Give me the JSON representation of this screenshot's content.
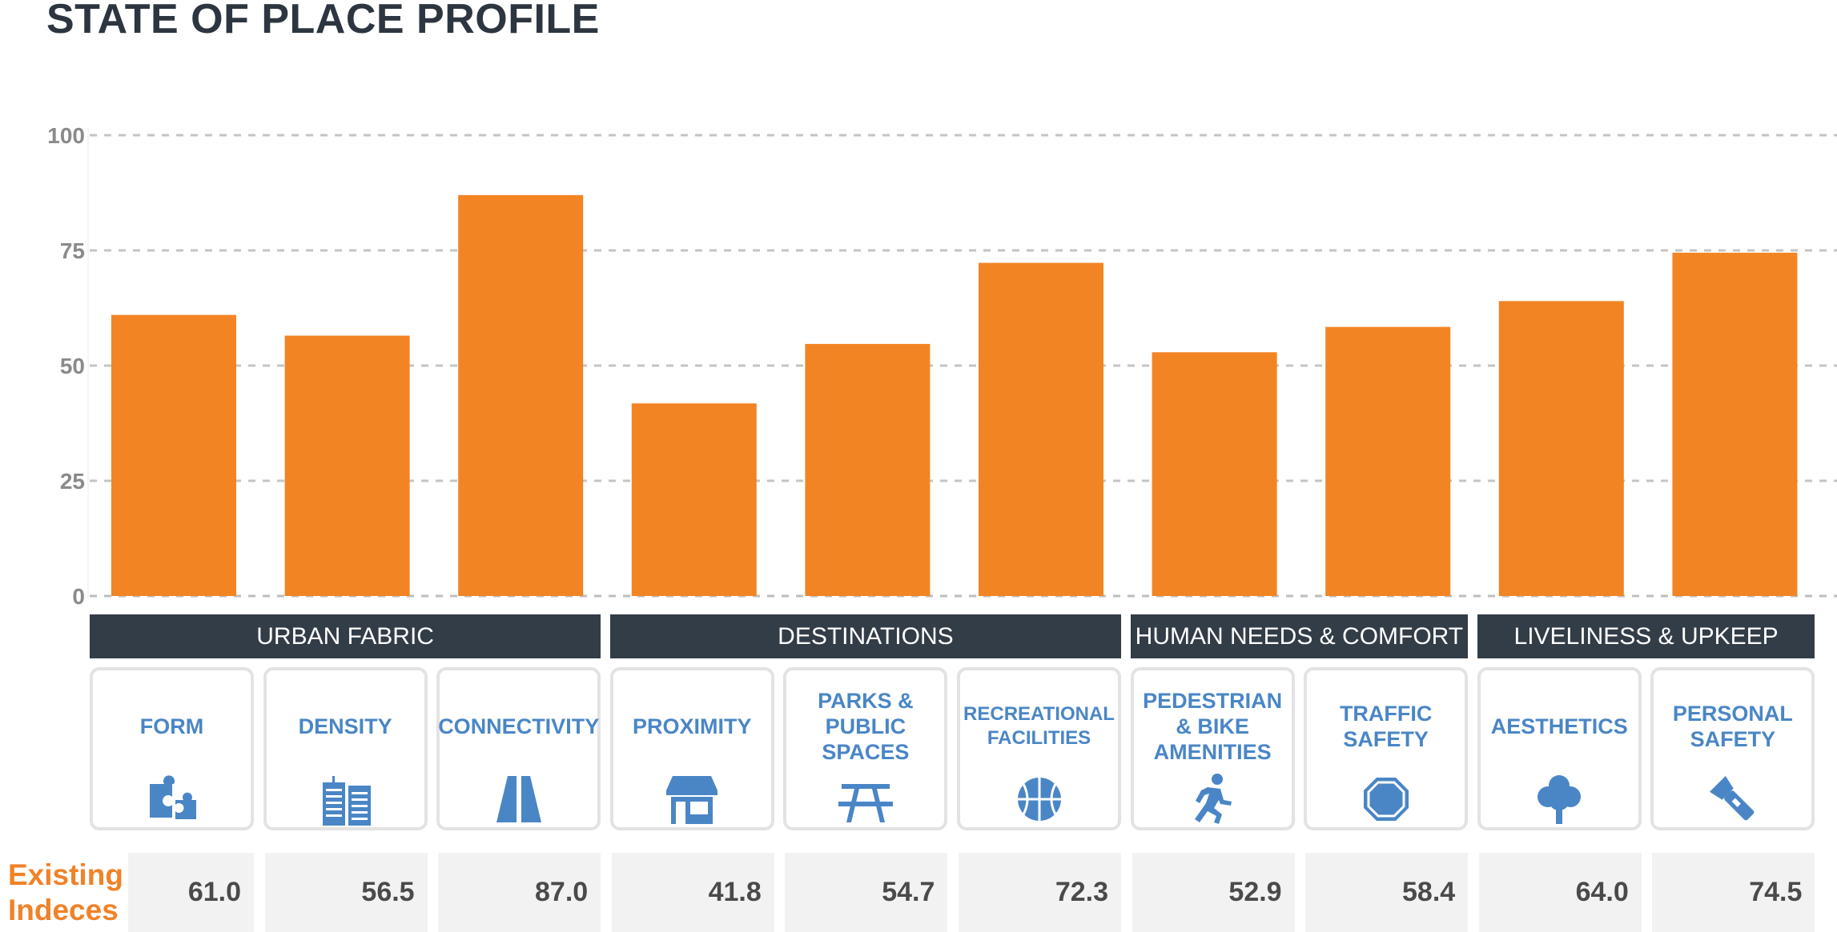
{
  "title": "STATE OF PLACE PROFILE",
  "row_label": "Existing Indeces",
  "colors": {
    "bar": "#f38423",
    "band": "#333d47",
    "label": "#4a86c6",
    "title": "#2d3640",
    "row_label": "#f08228"
  },
  "groups": [
    {
      "name": "URBAN FABRIC",
      "span": 3
    },
    {
      "name": "DESTINATIONS",
      "span": 3
    },
    {
      "name": "HUMAN NEEDS & COMFORT",
      "span": 2
    },
    {
      "name": "LIVELINESS & UPKEEP",
      "span": 2
    }
  ],
  "cards": [
    {
      "label": "FORM",
      "icon": "puzzle-icon"
    },
    {
      "label": "DENSITY",
      "icon": "buildings-icon"
    },
    {
      "label": "CONNECTIVITY",
      "icon": "road-icon"
    },
    {
      "label": "PROXIMITY",
      "icon": "storefront-icon"
    },
    {
      "label": "PARKS & PUBLIC SPACES",
      "icon": "picnic-table-icon"
    },
    {
      "label": "RECREATIONAL FACILITIES",
      "icon": "basketball-icon"
    },
    {
      "label": "PEDESTRIAN & BIKE AMENITIES",
      "icon": "runner-icon"
    },
    {
      "label": "TRAFFIC SAFETY",
      "icon": "stop-sign-icon"
    },
    {
      "label": "AESTHETICS",
      "icon": "tree-icon"
    },
    {
      "label": "PERSONAL SAFETY",
      "icon": "flashlight-icon"
    }
  ],
  "values_text": [
    "61.0",
    "56.5",
    "87.0",
    "41.8",
    "54.7",
    "72.3",
    "52.9",
    "58.4",
    "64.0",
    "74.5"
  ],
  "chart_data": {
    "type": "bar",
    "title": "STATE OF PLACE PROFILE",
    "categories": [
      "FORM",
      "DENSITY",
      "CONNECTIVITY",
      "PROXIMITY",
      "PARKS & PUBLIC SPACES",
      "RECREATIONAL FACILITIES",
      "PEDESTRIAN & BIKE AMENITIES",
      "TRAFFIC SAFETY",
      "AESTHETICS",
      "PERSONAL SAFETY"
    ],
    "values": [
      61.0,
      56.5,
      87.0,
      41.8,
      54.7,
      72.3,
      52.9,
      58.4,
      64.0,
      74.5
    ],
    "ylim": [
      0,
      100
    ],
    "yticks": [
      0,
      25,
      50,
      75,
      100
    ],
    "grid": true,
    "legend": "none"
  }
}
